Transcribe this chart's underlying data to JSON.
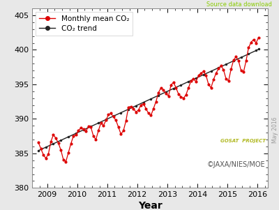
{
  "title": "",
  "xlabel": "Year",
  "ylabel": "",
  "xlim": [
    2008.5,
    2016.35
  ],
  "ylim": [
    380,
    406
  ],
  "yticks": [
    380,
    385,
    390,
    395,
    400,
    405
  ],
  "xticks": [
    2009,
    2010,
    2011,
    2012,
    2013,
    2014,
    2015,
    2016
  ],
  "source_text": "Source data download",
  "source_color": "#88cc00",
  "copyright_text": "©JAXA/NIES/MOE",
  "date_text": "May 2016",
  "bg_color": "#e8e8e8",
  "plot_bg_color": "#ffffff",
  "monthly_color": "#dd0000",
  "trend_color": "#222222",
  "legend_labels": [
    "Monthly mean CO₂",
    "CO₂ trend"
  ],
  "monthly_data": [
    [
      2008.708,
      386.6
    ],
    [
      2008.792,
      385.7
    ],
    [
      2008.875,
      384.8
    ],
    [
      2008.958,
      384.3
    ],
    [
      2009.042,
      384.9
    ],
    [
      2009.125,
      386.7
    ],
    [
      2009.208,
      387.7
    ],
    [
      2009.292,
      387.2
    ],
    [
      2009.375,
      386.5
    ],
    [
      2009.458,
      385.5
    ],
    [
      2009.542,
      384.1
    ],
    [
      2009.625,
      383.8
    ],
    [
      2009.708,
      385.1
    ],
    [
      2009.792,
      386.4
    ],
    [
      2009.875,
      387.5
    ],
    [
      2009.958,
      387.7
    ],
    [
      2010.042,
      388.3
    ],
    [
      2010.125,
      388.7
    ],
    [
      2010.208,
      388.5
    ],
    [
      2010.292,
      388.2
    ],
    [
      2010.375,
      388.9
    ],
    [
      2010.458,
      388.8
    ],
    [
      2010.542,
      387.5
    ],
    [
      2010.625,
      387.0
    ],
    [
      2010.708,
      388.3
    ],
    [
      2010.792,
      389.4
    ],
    [
      2010.875,
      389.0
    ],
    [
      2010.958,
      389.8
    ],
    [
      2011.042,
      390.6
    ],
    [
      2011.125,
      390.8
    ],
    [
      2011.208,
      390.3
    ],
    [
      2011.292,
      389.8
    ],
    [
      2011.375,
      388.8
    ],
    [
      2011.458,
      387.8
    ],
    [
      2011.542,
      388.3
    ],
    [
      2011.625,
      389.7
    ],
    [
      2011.708,
      391.7
    ],
    [
      2011.792,
      391.8
    ],
    [
      2011.875,
      391.5
    ],
    [
      2011.958,
      391.0
    ],
    [
      2012.042,
      391.3
    ],
    [
      2012.125,
      392.0
    ],
    [
      2012.208,
      392.2
    ],
    [
      2012.292,
      391.5
    ],
    [
      2012.375,
      390.8
    ],
    [
      2012.458,
      390.5
    ],
    [
      2012.542,
      391.5
    ],
    [
      2012.625,
      392.5
    ],
    [
      2012.708,
      393.8
    ],
    [
      2012.792,
      394.5
    ],
    [
      2012.875,
      394.2
    ],
    [
      2012.958,
      393.7
    ],
    [
      2013.042,
      393.3
    ],
    [
      2013.125,
      394.9
    ],
    [
      2013.208,
      395.3
    ],
    [
      2013.292,
      394.5
    ],
    [
      2013.375,
      393.6
    ],
    [
      2013.458,
      393.2
    ],
    [
      2013.542,
      393.0
    ],
    [
      2013.625,
      393.5
    ],
    [
      2013.708,
      394.5
    ],
    [
      2013.792,
      395.5
    ],
    [
      2013.875,
      395.8
    ],
    [
      2013.958,
      395.4
    ],
    [
      2014.042,
      396.3
    ],
    [
      2014.125,
      396.6
    ],
    [
      2014.208,
      396.9
    ],
    [
      2014.292,
      396.3
    ],
    [
      2014.375,
      395.0
    ],
    [
      2014.458,
      394.5
    ],
    [
      2014.542,
      395.7
    ],
    [
      2014.625,
      396.6
    ],
    [
      2014.708,
      397.3
    ],
    [
      2014.792,
      397.7
    ],
    [
      2014.875,
      397.1
    ],
    [
      2014.958,
      395.8
    ],
    [
      2015.042,
      395.5
    ],
    [
      2015.125,
      397.2
    ],
    [
      2015.208,
      398.5
    ],
    [
      2015.292,
      399.0
    ],
    [
      2015.375,
      398.4
    ],
    [
      2015.458,
      397.0
    ],
    [
      2015.542,
      396.8
    ],
    [
      2015.625,
      398.4
    ],
    [
      2015.708,
      400.3
    ],
    [
      2015.792,
      401.1
    ],
    [
      2015.875,
      401.5
    ],
    [
      2015.958,
      401.0
    ],
    [
      2016.042,
      401.8
    ]
  ],
  "trend_data": [
    [
      2008.708,
      385.4
    ],
    [
      2008.958,
      385.9
    ],
    [
      2009.208,
      386.4
    ],
    [
      2009.458,
      386.9
    ],
    [
      2009.708,
      387.4
    ],
    [
      2009.958,
      387.9
    ],
    [
      2010.208,
      388.4
    ],
    [
      2010.458,
      388.9
    ],
    [
      2010.708,
      389.4
    ],
    [
      2010.958,
      389.9
    ],
    [
      2011.208,
      390.4
    ],
    [
      2011.458,
      390.9
    ],
    [
      2011.708,
      391.4
    ],
    [
      2011.958,
      391.9
    ],
    [
      2012.208,
      392.4
    ],
    [
      2012.458,
      392.9
    ],
    [
      2012.708,
      393.4
    ],
    [
      2012.958,
      393.9
    ],
    [
      2013.208,
      394.4
    ],
    [
      2013.458,
      394.9
    ],
    [
      2013.708,
      395.4
    ],
    [
      2013.958,
      395.9
    ],
    [
      2014.208,
      396.4
    ],
    [
      2014.458,
      396.9
    ],
    [
      2014.708,
      397.4
    ],
    [
      2014.958,
      397.9
    ],
    [
      2015.208,
      398.4
    ],
    [
      2015.458,
      398.9
    ],
    [
      2015.708,
      399.4
    ],
    [
      2015.958,
      399.9
    ],
    [
      2016.042,
      400.1
    ]
  ]
}
